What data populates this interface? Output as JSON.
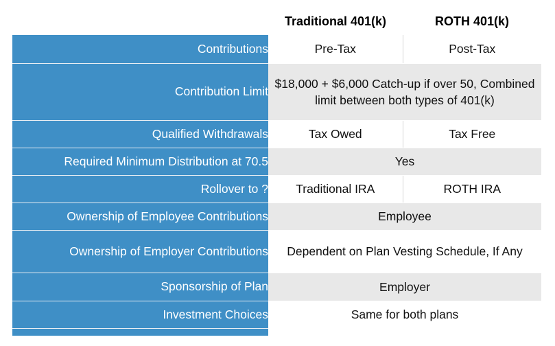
{
  "columns": [
    "Traditional 401(k)",
    "ROTH 401(k)"
  ],
  "rows": [
    {
      "label": "Contributions",
      "traditional": "Pre-Tax",
      "roth": "Post-Tax"
    },
    {
      "label": "Contribution Limit",
      "combined": "$18,000 + $6,000 Catch-up if over 50, Combined limit between both types of 401(k)"
    },
    {
      "label": "Qualified Withdrawals",
      "traditional": "Tax Owed",
      "roth": "Tax Free"
    },
    {
      "label": "Required Minimum Distribution at 70.5",
      "combined": "Yes"
    },
    {
      "label": "Rollover to ?",
      "traditional": "Traditional IRA",
      "roth": "ROTH IRA"
    },
    {
      "label": "Ownership of Employee Contributions",
      "combined": "Employee"
    },
    {
      "label": "Ownership of Employer Contributions",
      "combined": "Dependent on Plan Vesting Schedule, If Any"
    },
    {
      "label": "Sponsorship of Plan",
      "combined": "Employer"
    },
    {
      "label": "Investment Choices",
      "combined": "Same for both plans"
    }
  ],
  "colors": {
    "label_column": "#3f8fc6",
    "stripe_white": "#ffffff",
    "stripe_gray": "#e8e8e8",
    "header_text": "#000000"
  }
}
